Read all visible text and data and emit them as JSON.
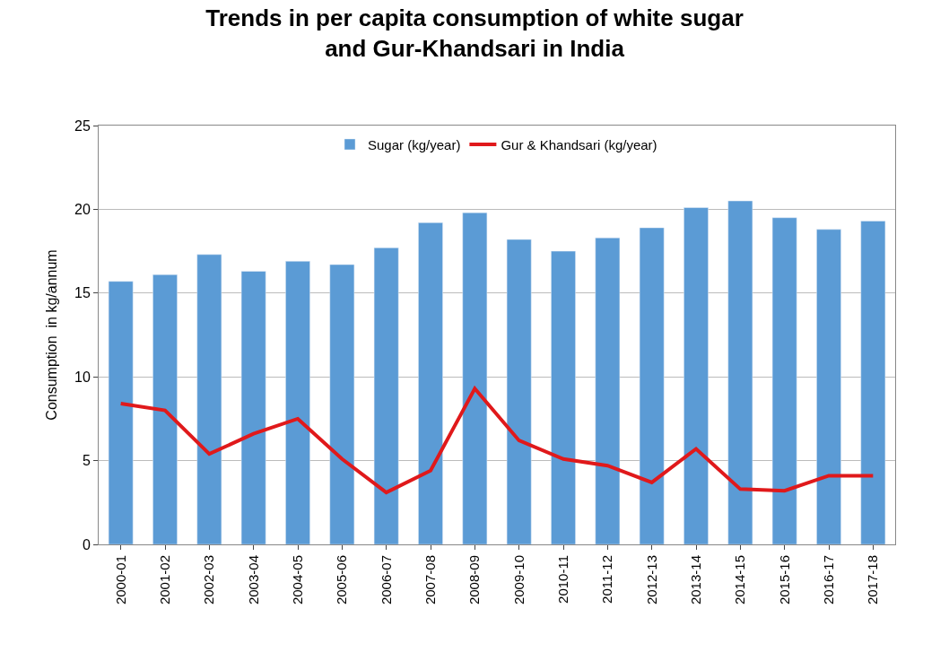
{
  "chart_data": {
    "type": "bar",
    "title": "Trends in per capita consumption of white sugar\nand Gur-Khandsari in India",
    "ylabel": "Consumption  in kg/annum",
    "categories": [
      "2000-01",
      "2001-02",
      "2002-03",
      "2003-04",
      "2004-05",
      "2005-06",
      "2006-07",
      "2007-08",
      "2008-09",
      "2009-10",
      "2010-11",
      "2011-12",
      "2012-13",
      "2013-14",
      "2014-15",
      "2015-16",
      "2016-17",
      "2017-18"
    ],
    "series": [
      {
        "name": "Sugar (kg/year)",
        "color": "#5b9bd5",
        "values": [
          15.7,
          16.1,
          17.3,
          16.3,
          16.9,
          16.7,
          17.7,
          19.2,
          19.8,
          18.2,
          17.5,
          18.3,
          18.9,
          20.1,
          20.5,
          19.5,
          18.8,
          19.3
        ]
      },
      {
        "name": "Gur & Khandsari (kg/year)",
        "type": "line",
        "color": "#e0191b",
        "values": [
          8.4,
          8.0,
          5.4,
          6.6,
          7.5,
          5.1,
          3.1,
          4.4,
          9.3,
          6.2,
          5.1,
          4.7,
          3.7,
          5.7,
          3.3,
          3.2,
          4.1,
          4.1
        ]
      }
    ],
    "ylim": [
      0,
      25
    ],
    "yticks": [
      0,
      5,
      10,
      15,
      20,
      25
    ],
    "grid": "y",
    "legend": "top",
    "marker": "none",
    "line_style": "solid"
  }
}
